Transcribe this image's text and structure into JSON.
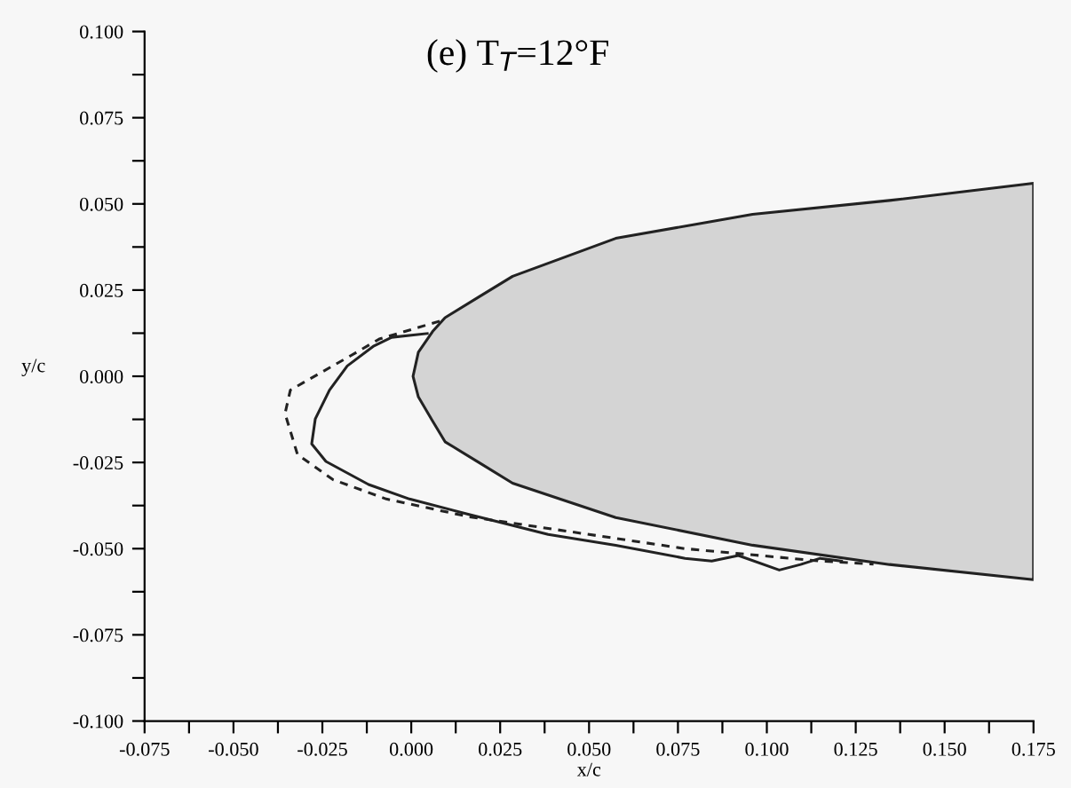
{
  "chart_data": {
    "type": "line",
    "title": "(e) T$_{T}$=12°F",
    "xlabel": "x/c",
    "ylabel": "y/c",
    "xlim": [
      -0.075,
      0.175
    ],
    "ylim": [
      -0.1,
      0.1
    ],
    "xticks": [
      {
        "value": -0.075,
        "label": "-0.075"
      },
      {
        "value": -0.0625,
        "label": null
      },
      {
        "value": -0.05,
        "label": "-0.050"
      },
      {
        "value": -0.0375,
        "label": null
      },
      {
        "value": -0.025,
        "label": "-0.025"
      },
      {
        "value": -0.0125,
        "label": null
      },
      {
        "value": 0,
        "label": "0.000"
      },
      {
        "value": 0.0125,
        "label": null
      },
      {
        "value": 0.025,
        "label": "0.025"
      },
      {
        "value": 0.0375,
        "label": null
      },
      {
        "value": 0.05,
        "label": "0.050"
      },
      {
        "value": 0.0625,
        "label": null
      },
      {
        "value": 0.075,
        "label": "0.075"
      },
      {
        "value": 0.0875,
        "label": null
      },
      {
        "value": 0.1,
        "label": "0.100"
      },
      {
        "value": 0.1125,
        "label": null
      },
      {
        "value": 0.125,
        "label": "0.125"
      },
      {
        "value": 0.1375,
        "label": null
      },
      {
        "value": 0.15,
        "label": "0.150"
      },
      {
        "value": 0.1625,
        "label": null
      },
      {
        "value": 0.175,
        "label": "0.175"
      }
    ],
    "yticks": [
      {
        "value": -0.1,
        "label": "-0.100"
      },
      {
        "value": -0.0875,
        "label": null
      },
      {
        "value": -0.075,
        "label": "-0.075"
      },
      {
        "value": -0.0625,
        "label": null
      },
      {
        "value": -0.05,
        "label": "-0.050"
      },
      {
        "value": -0.0375,
        "label": null
      },
      {
        "value": -0.025,
        "label": "-0.025"
      },
      {
        "value": -0.0125,
        "label": null
      },
      {
        "value": 0,
        "label": "0.000"
      },
      {
        "value": 0.0125,
        "label": null
      },
      {
        "value": 0.025,
        "label": "0.025"
      },
      {
        "value": 0.0375,
        "label": null
      },
      {
        "value": 0.05,
        "label": "0.050"
      },
      {
        "value": 0.0625,
        "label": null
      },
      {
        "value": 0.075,
        "label": "0.075"
      },
      {
        "value": 0.0875,
        "label": null
      },
      {
        "value": 0.1,
        "label": "0.100"
      }
    ],
    "grid": false,
    "legend": false,
    "series": [
      {
        "type": "area",
        "color": "#d4d4d4",
        "x": [
          0.0005,
          0.002,
          0.006,
          0.0095,
          0.019,
          0.0285,
          0.0575,
          0.096,
          0.1345,
          0.175,
          0.175,
          0.1345,
          0.096,
          0.0575,
          0.0285,
          0.019,
          0.0095,
          0.006,
          0.002
        ],
        "values": [
          0,
          0.007,
          0.013,
          0.017,
          0.023,
          0.029,
          0.04,
          0.047,
          0.051,
          0.056,
          -0.059,
          -0.0546,
          -0.049,
          -0.041,
          -0.031,
          -0.025,
          -0.019,
          -0.013,
          -0.006
        ]
      },
      {
        "color": "#222222",
        "line_style": "solid",
        "x": [
          0.0045,
          -0.0055,
          -0.0105,
          -0.018,
          -0.023,
          -0.027,
          -0.028,
          -0.024,
          -0.012,
          -0.0005,
          0.016,
          0.0385,
          0.0575,
          0.077,
          0.0845,
          0.092,
          0.1035,
          0.1095,
          0.115,
          0.121
        ],
        "values": [
          0.0124,
          0.0113,
          0.0088,
          0.003,
          -0.004,
          -0.0124,
          -0.0196,
          -0.0247,
          -0.0314,
          -0.0356,
          -0.04,
          -0.0459,
          -0.049,
          -0.0528,
          -0.0536,
          -0.052,
          -0.0562,
          -0.0546,
          -0.0528,
          -0.0536
        ]
      },
      {
        "color": "#222222",
        "line_style": "dashed",
        "x": [
          0.008,
          -0.0005,
          -0.009,
          -0.017,
          -0.034,
          -0.0355,
          -0.032,
          -0.022,
          -0.007,
          0.016,
          0.077,
          0.115,
          0.13
        ],
        "values": [
          0.016,
          0.0134,
          0.0108,
          0.006,
          -0.004,
          -0.0108,
          -0.0227,
          -0.03,
          -0.0356,
          -0.0407,
          -0.05,
          -0.0536,
          -0.0545
        ]
      }
    ]
  }
}
